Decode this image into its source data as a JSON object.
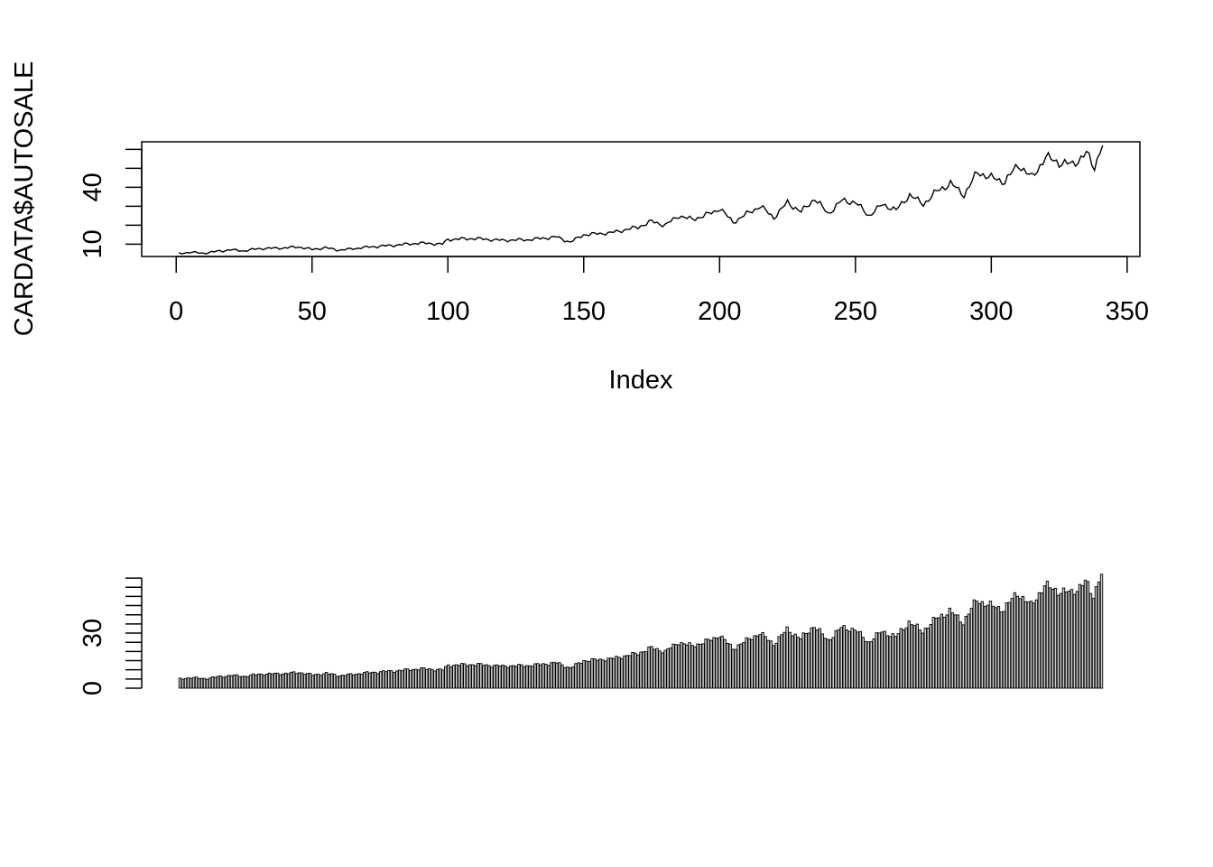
{
  "figure": {
    "background": "#ffffff",
    "ink": "#000000"
  },
  "chart_data": [
    {
      "type": "line",
      "title": "",
      "xlabel": "Index",
      "ylabel": "CARDATA$AUTOSALE",
      "x_ticks": [
        0,
        50,
        100,
        150,
        200,
        250,
        300,
        350
      ],
      "y_ticks": [
        10,
        20,
        30,
        40,
        50,
        60
      ],
      "y_tick_labels": [
        "10",
        "40"
      ],
      "xlim": [
        -12.7,
        354.7
      ],
      "ylim": [
        3.5,
        64
      ],
      "box": true,
      "grid": false,
      "anchors": [
        [
          1,
          5.0
        ],
        [
          5,
          5.8
        ],
        [
          10,
          5.2
        ],
        [
          15,
          6.2
        ],
        [
          20,
          7.0
        ],
        [
          25,
          6.5
        ],
        [
          30,
          7.6
        ],
        [
          40,
          8.0
        ],
        [
          45,
          8.6
        ],
        [
          50,
          7.2
        ],
        [
          55,
          8.1
        ],
        [
          60,
          6.8
        ],
        [
          70,
          8.4
        ],
        [
          80,
          9.4
        ],
        [
          90,
          10.6
        ],
        [
          98,
          10.0
        ],
        [
          100,
          12.5
        ],
        [
          110,
          13.0
        ],
        [
          120,
          12.0
        ],
        [
          130,
          12.4
        ],
        [
          140,
          13.8
        ],
        [
          145,
          11.0
        ],
        [
          150,
          15.0
        ],
        [
          160,
          16.0
        ],
        [
          170,
          19.0
        ],
        [
          175,
          22.0
        ],
        [
          180,
          20.0
        ],
        [
          185,
          25.0
        ],
        [
          190,
          23.0
        ],
        [
          198,
          27.0
        ],
        [
          200,
          29.0
        ],
        [
          205,
          21.5
        ],
        [
          210,
          26.0
        ],
        [
          215,
          30.0
        ],
        [
          220,
          24.0
        ],
        [
          225,
          32.0
        ],
        [
          230,
          27.0
        ],
        [
          235,
          34.0
        ],
        [
          240,
          26.0
        ],
        [
          245,
          33.0
        ],
        [
          250,
          32.0
        ],
        [
          255,
          25.0
        ],
        [
          260,
          31.0
        ],
        [
          265,
          28.0
        ],
        [
          270,
          36.0
        ],
        [
          275,
          31.0
        ],
        [
          280,
          38.0
        ],
        [
          285,
          42.0
        ],
        [
          290,
          36.0
        ],
        [
          295,
          48.0
        ],
        [
          300,
          45.0
        ],
        [
          305,
          43.0
        ],
        [
          310,
          52.0
        ],
        [
          315,
          45.0
        ],
        [
          320,
          56.0
        ],
        [
          325,
          53.0
        ],
        [
          330,
          52.0
        ],
        [
          335,
          58.0
        ],
        [
          338,
          50.0
        ],
        [
          340,
          60.0
        ],
        [
          341,
          62.0
        ]
      ],
      "n": 341
    },
    {
      "type": "bar",
      "title": "",
      "xlabel": "",
      "ylabel": "",
      "y_ticks": [
        0,
        5,
        10,
        15,
        20,
        25,
        30,
        35,
        40,
        45,
        50,
        55,
        60
      ],
      "y_tick_labels": [
        "0",
        "30"
      ],
      "ylim": [
        0,
        62
      ],
      "values_from": "same series as chart 1",
      "grid": false,
      "box": false
    }
  ]
}
